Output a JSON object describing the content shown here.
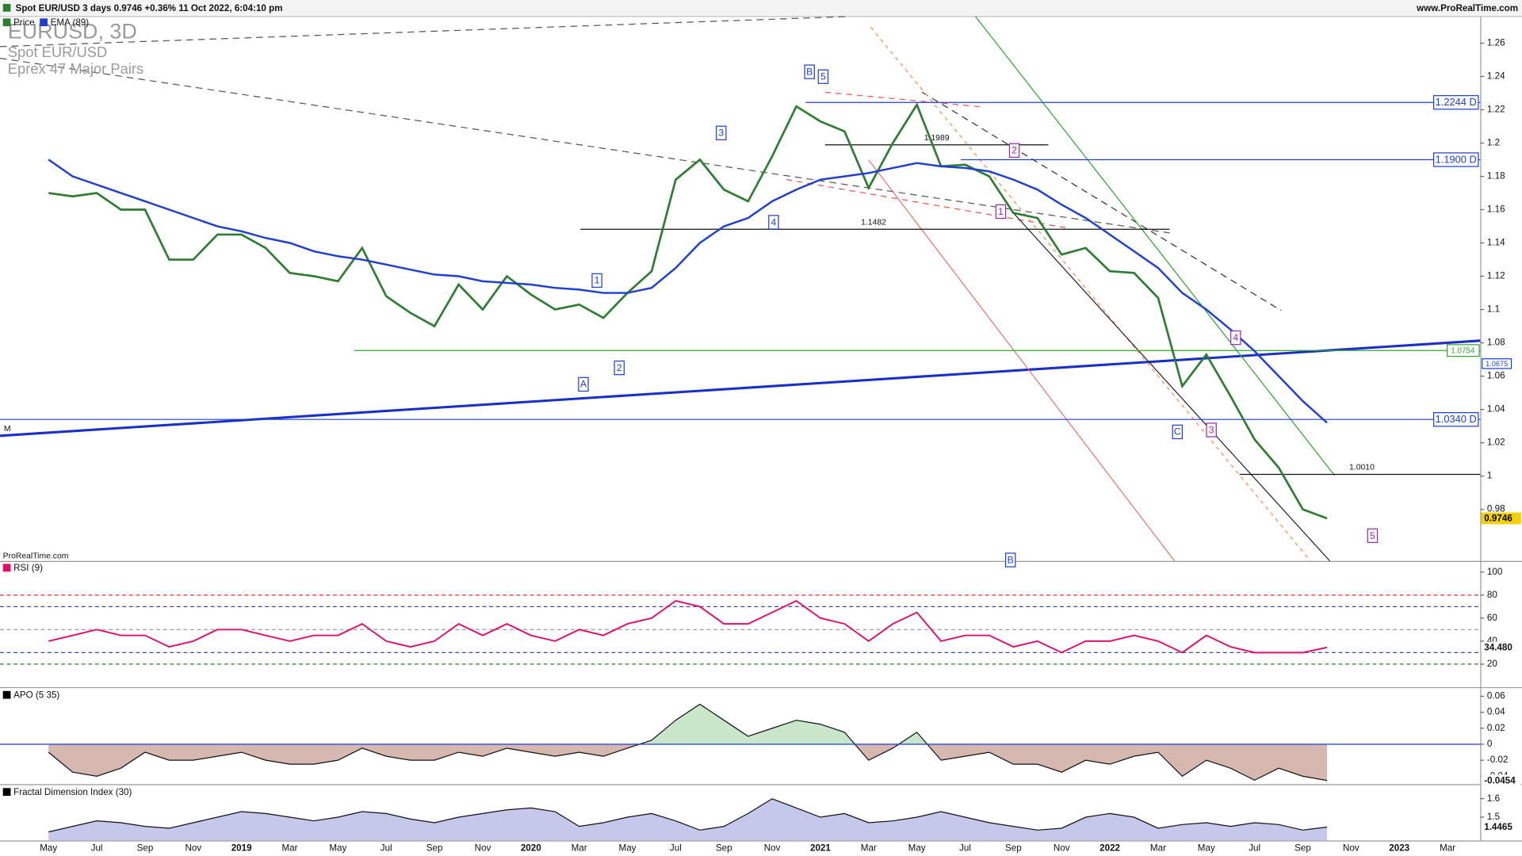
{
  "header": {
    "symbol_info": "Spot EUR/USD 3 days 0.9746 +0.36% 11 Oct 2022, 6:04:10 pm",
    "site": "www.ProRealTime.com"
  },
  "chart_data": [
    {
      "type": "line",
      "title": "EURUSD, 3D",
      "subtitle": "Spot EUR/USD",
      "source_note": "Eprex 47 Major Pairs",
      "watermark": "ProRealTime.com",
      "marker_label": "M",
      "categories": [
        "May",
        null,
        "Jul",
        null,
        "Sep",
        null,
        "Nov",
        null,
        "2019",
        null,
        "Mar",
        null,
        "May",
        null,
        "Jul",
        null,
        "Sep",
        null,
        "Nov",
        null,
        "2020",
        null,
        "Mar",
        null,
        "May",
        null,
        "Jul",
        null,
        "Sep",
        null,
        "Nov",
        null,
        "2021",
        null,
        "Mar",
        null,
        "May",
        null,
        "Jul",
        null,
        "Sep",
        null,
        "Nov",
        null,
        "2022",
        null,
        "Mar",
        null,
        "May",
        null,
        "Jul",
        null,
        "Sep",
        null,
        "Nov",
        null,
        "2023",
        null,
        "Mar"
      ],
      "series": [
        {
          "name": "Price",
          "color": "#2e7d32",
          "values": [
            1.17,
            1.168,
            1.17,
            1.16,
            1.16,
            1.13,
            1.13,
            1.145,
            1.145,
            1.137,
            1.122,
            1.12,
            1.117,
            1.137,
            1.108,
            1.098,
            1.09,
            1.115,
            1.1,
            1.12,
            1.109,
            1.1,
            1.103,
            1.095,
            1.11,
            1.123,
            1.178,
            1.19,
            1.172,
            1.165,
            1.192,
            1.222,
            1.213,
            1.207,
            1.173,
            1.2,
            1.223,
            1.186,
            1.187,
            1.18,
            1.158,
            1.155,
            1.133,
            1.137,
            1.123,
            1.122,
            1.107,
            1.054,
            1.073,
            1.048,
            1.022,
            1.005,
            0.98,
            0.9746,
            null,
            null,
            null,
            null,
            null
          ]
        },
        {
          "name": "EMA (89)",
          "color": "#1f3fd0",
          "values": [
            1.19,
            1.18,
            1.175,
            1.17,
            1.165,
            1.16,
            1.155,
            1.15,
            1.147,
            1.143,
            1.14,
            1.135,
            1.132,
            1.13,
            1.127,
            1.124,
            1.121,
            1.12,
            1.117,
            1.116,
            1.115,
            1.113,
            1.112,
            1.11,
            1.11,
            1.113,
            1.125,
            1.14,
            1.15,
            1.155,
            1.165,
            1.172,
            1.178,
            1.18,
            1.182,
            1.185,
            1.188,
            1.186,
            1.185,
            1.183,
            1.178,
            1.172,
            1.163,
            1.155,
            1.145,
            1.135,
            1.125,
            1.11,
            1.1,
            1.088,
            1.075,
            1.06,
            1.045,
            1.032,
            null,
            null,
            null,
            null,
            null
          ]
        }
      ],
      "ylim": [
        0.949,
        1.276
      ],
      "yticks": [
        1.26,
        1.24,
        1.22,
        1.2,
        1.18,
        1.16,
        1.14,
        1.12,
        1.1,
        1.08,
        1.06,
        1.04,
        1.02,
        1,
        0.98
      ],
      "last_value": {
        "value": 0.9746,
        "label": "0.9746"
      },
      "levels": [
        {
          "value": 1.2244,
          "label": "1.2244 D",
          "color": "#1f3fd0"
        },
        {
          "value": 1.19,
          "label": "1.1900 D",
          "color": "#1f3fd0"
        },
        {
          "value": 1.0754,
          "label": "1.0754",
          "color": "#2fa52f"
        },
        {
          "value": 1.0675,
          "label": "1.0675",
          "color": "#1f3fd0"
        },
        {
          "value": 1.034,
          "label": "1.0340 D",
          "color": "#1f3fd0"
        },
        {
          "value": 1.001,
          "label": "1.0010",
          "color": "#111111"
        },
        {
          "value": 1.1482,
          "label": "1.1482",
          "color": "#111111"
        },
        {
          "value": 1.1989,
          "label": "1.1989",
          "color": "#111111"
        }
      ],
      "annotations": [
        {
          "text": "B",
          "color": "#1f3fd0"
        },
        {
          "text": "5",
          "color": "#1f3fd0"
        },
        {
          "text": "3",
          "color": "#1f3fd0"
        },
        {
          "text": "4",
          "color": "#1f3fd0"
        },
        {
          "text": "1",
          "color": "#1f3fd0"
        },
        {
          "text": "2",
          "color": "#1f3fd0"
        },
        {
          "text": "A",
          "color": "#1f3fd0"
        },
        {
          "text": "C",
          "color": "#1f3fd0"
        },
        {
          "text": "B",
          "color": "#1f3fd0"
        },
        {
          "text": "2",
          "color": "#9c27b0"
        },
        {
          "text": "1",
          "color": "#9c27b0"
        },
        {
          "text": "4",
          "color": "#9c27b0"
        },
        {
          "text": "3",
          "color": "#9c27b0"
        },
        {
          "text": "5",
          "color": "#9c27b0"
        }
      ]
    },
    {
      "type": "line",
      "title": "RSI (9)",
      "color": "#e0106a",
      "values": [
        40,
        45,
        50,
        45,
        45,
        35,
        40,
        50,
        50,
        45,
        40,
        45,
        45,
        55,
        40,
        35,
        40,
        55,
        45,
        55,
        45,
        40,
        50,
        45,
        55,
        60,
        75,
        70,
        55,
        55,
        65,
        75,
        60,
        55,
        40,
        55,
        65,
        40,
        45,
        45,
        35,
        40,
        30,
        40,
        40,
        45,
        40,
        30,
        45,
        35,
        30,
        30,
        30,
        34.48,
        null,
        null,
        null,
        null,
        null
      ],
      "ylim": [
        0,
        108
      ],
      "yticks": [
        20,
        40,
        60,
        80,
        100
      ],
      "levels": [
        {
          "value": 80,
          "color": "#d32f2f"
        },
        {
          "value": 70,
          "color": "#3949ab"
        },
        {
          "value": 50,
          "color": "#9e9e9e"
        },
        {
          "value": 30,
          "color": "#3949ab"
        },
        {
          "value": 20,
          "color": "#2e7d32"
        }
      ],
      "last_value": {
        "value": 34.48,
        "label": "34.480"
      }
    },
    {
      "type": "area",
      "title": "APO (5 35)",
      "values": [
        -0.01,
        -0.035,
        -0.04,
        -0.03,
        -0.01,
        -0.02,
        -0.02,
        -0.015,
        -0.01,
        -0.02,
        -0.025,
        -0.025,
        -0.02,
        -0.005,
        -0.015,
        -0.02,
        -0.02,
        -0.01,
        -0.015,
        -0.005,
        -0.01,
        -0.015,
        -0.01,
        -0.015,
        -0.005,
        0.005,
        0.03,
        0.05,
        0.03,
        0.01,
        0.02,
        0.03,
        0.025,
        0.015,
        -0.02,
        -0.005,
        0.015,
        -0.02,
        -0.015,
        -0.01,
        -0.025,
        -0.025,
        -0.035,
        -0.02,
        -0.025,
        -0.015,
        -0.01,
        -0.04,
        -0.02,
        -0.03,
        -0.045,
        -0.03,
        -0.04,
        -0.0454,
        null,
        null,
        null,
        null,
        null
      ],
      "ylim": [
        -0.05,
        0.069
      ],
      "yticks": [
        0.06,
        0.04,
        0.02,
        0,
        -0.02,
        -0.04
      ],
      "colors": {
        "positive": "#c8e6c9",
        "negative": "#d7b8b0"
      },
      "last_value": {
        "value": -0.0454,
        "label": "-0.0454"
      }
    },
    {
      "type": "area",
      "title": "Fractal Dimension Index (30)",
      "color": "#c5c8ea",
      "values": [
        1.42,
        1.45,
        1.48,
        1.47,
        1.45,
        1.44,
        1.47,
        1.5,
        1.53,
        1.52,
        1.5,
        1.48,
        1.5,
        1.53,
        1.52,
        1.49,
        1.47,
        1.5,
        1.52,
        1.54,
        1.55,
        1.53,
        1.45,
        1.47,
        1.5,
        1.52,
        1.48,
        1.43,
        1.45,
        1.52,
        1.6,
        1.55,
        1.5,
        1.52,
        1.47,
        1.48,
        1.5,
        1.53,
        1.5,
        1.47,
        1.45,
        1.43,
        1.44,
        1.5,
        1.52,
        1.5,
        1.44,
        1.46,
        1.47,
        1.45,
        1.47,
        1.46,
        1.43,
        1.4465,
        null,
        null,
        null,
        null,
        null
      ],
      "ylim": [
        1.374,
        1.668
      ],
      "yticks": [
        1.5,
        1.6
      ],
      "last_value": {
        "value": 1.4465,
        "label": "1.4465"
      }
    }
  ]
}
